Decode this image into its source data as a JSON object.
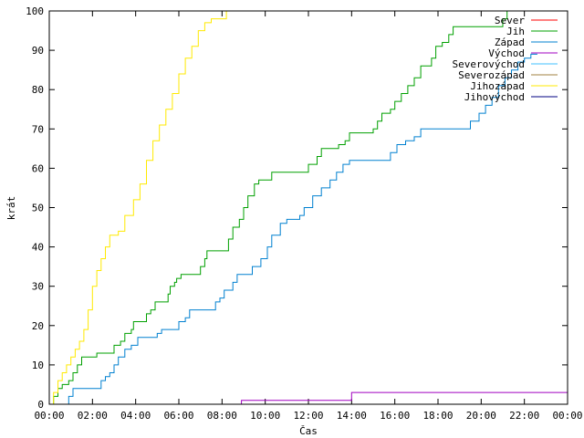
{
  "chart_data": {
    "type": "line",
    "xlabel": "Čas",
    "ylabel": "krát",
    "x_ticks": [
      "00:00",
      "02:00",
      "04:00",
      "06:00",
      "08:00",
      "10:00",
      "12:00",
      "14:00",
      "16:00",
      "18:00",
      "20:00",
      "22:00",
      "00:00"
    ],
    "y_ticks": [
      "0",
      "10",
      "20",
      "30",
      "40",
      "50",
      "60",
      "70",
      "80",
      "90",
      "100"
    ],
    "xlim": [
      0,
      24
    ],
    "ylim": [
      0,
      100
    ],
    "grid": false,
    "legend_position": "top-right",
    "series": [
      {
        "name": "Sever",
        "color": "#ff0000",
        "points": []
      },
      {
        "name": "Jih",
        "color": "#00a000",
        "points": [
          [
            0,
            0
          ],
          [
            0.2,
            2
          ],
          [
            0.4,
            4
          ],
          [
            0.6,
            5
          ],
          [
            0.9,
            6
          ],
          [
            1.1,
            8
          ],
          [
            1.3,
            10
          ],
          [
            1.5,
            12
          ],
          [
            2.1,
            12
          ],
          [
            2.2,
            13
          ],
          [
            2.9,
            13
          ],
          [
            3.0,
            15
          ],
          [
            3.3,
            16
          ],
          [
            3.5,
            18
          ],
          [
            3.8,
            19
          ],
          [
            3.9,
            21
          ],
          [
            4.4,
            21
          ],
          [
            4.5,
            23
          ],
          [
            4.7,
            24
          ],
          [
            4.9,
            26
          ],
          [
            5.4,
            26
          ],
          [
            5.5,
            28
          ],
          [
            5.6,
            30
          ],
          [
            5.8,
            31
          ],
          [
            5.9,
            32
          ],
          [
            6.1,
            33
          ],
          [
            6.9,
            33
          ],
          [
            7.0,
            35
          ],
          [
            7.2,
            37
          ],
          [
            7.3,
            39
          ],
          [
            8.1,
            39
          ],
          [
            8.3,
            42
          ],
          [
            8.5,
            45
          ],
          [
            8.8,
            47
          ],
          [
            9.0,
            50
          ],
          [
            9.2,
            53
          ],
          [
            9.5,
            56
          ],
          [
            9.7,
            57
          ],
          [
            10.2,
            57
          ],
          [
            10.3,
            59
          ],
          [
            11.9,
            59
          ],
          [
            12.0,
            61
          ],
          [
            12.4,
            63
          ],
          [
            12.6,
            65
          ],
          [
            13.2,
            65
          ],
          [
            13.4,
            66
          ],
          [
            13.7,
            67
          ],
          [
            13.9,
            69
          ],
          [
            14.7,
            69
          ],
          [
            15.0,
            70
          ],
          [
            15.2,
            72
          ],
          [
            15.4,
            74
          ],
          [
            15.8,
            75
          ],
          [
            16.0,
            77
          ],
          [
            16.3,
            79
          ],
          [
            16.6,
            81
          ],
          [
            16.9,
            83
          ],
          [
            17.2,
            86
          ],
          [
            17.4,
            86
          ],
          [
            17.7,
            88
          ],
          [
            17.9,
            91
          ],
          [
            18.2,
            92
          ],
          [
            18.5,
            94
          ],
          [
            18.7,
            96
          ],
          [
            20.7,
            96
          ],
          [
            21.0,
            98
          ],
          [
            21.2,
            100
          ]
        ]
      },
      {
        "name": "Západ",
        "color": "#0080d0",
        "points": [
          [
            0.8,
            0
          ],
          [
            0.9,
            2
          ],
          [
            1.1,
            4
          ],
          [
            2.3,
            4
          ],
          [
            2.4,
            6
          ],
          [
            2.6,
            7
          ],
          [
            2.8,
            8
          ],
          [
            3.0,
            10
          ],
          [
            3.2,
            12
          ],
          [
            3.5,
            14
          ],
          [
            3.8,
            15
          ],
          [
            4.1,
            17
          ],
          [
            4.9,
            17
          ],
          [
            5.0,
            18
          ],
          [
            5.2,
            19
          ],
          [
            5.9,
            19
          ],
          [
            6.0,
            21
          ],
          [
            6.3,
            22
          ],
          [
            6.5,
            24
          ],
          [
            7.5,
            24
          ],
          [
            7.7,
            26
          ],
          [
            7.9,
            27
          ],
          [
            8.1,
            29
          ],
          [
            8.5,
            31
          ],
          [
            8.7,
            33
          ],
          [
            9.2,
            33
          ],
          [
            9.4,
            35
          ],
          [
            9.8,
            37
          ],
          [
            10.1,
            40
          ],
          [
            10.3,
            43
          ],
          [
            10.7,
            46
          ],
          [
            11.0,
            47
          ],
          [
            11.6,
            48
          ],
          [
            11.8,
            50
          ],
          [
            12.2,
            53
          ],
          [
            12.6,
            55
          ],
          [
            13.0,
            57
          ],
          [
            13.3,
            59
          ],
          [
            13.6,
            61
          ],
          [
            13.9,
            62
          ],
          [
            15.6,
            62
          ],
          [
            15.8,
            64
          ],
          [
            16.1,
            66
          ],
          [
            16.5,
            67
          ],
          [
            16.9,
            68
          ],
          [
            17.2,
            70
          ],
          [
            19.3,
            70
          ],
          [
            19.5,
            72
          ],
          [
            19.9,
            74
          ],
          [
            20.2,
            76
          ],
          [
            20.5,
            78
          ],
          [
            20.8,
            81
          ],
          [
            21.1,
            83
          ],
          [
            21.4,
            85
          ],
          [
            21.7,
            87
          ],
          [
            22.0,
            88
          ],
          [
            22.3,
            89
          ],
          [
            22.6,
            89
          ]
        ]
      },
      {
        "name": "Východ",
        "color": "#a000c0",
        "points": [
          [
            8.8,
            0
          ],
          [
            8.9,
            1
          ],
          [
            13.9,
            1
          ],
          [
            14.0,
            3
          ],
          [
            24.0,
            3
          ]
        ]
      },
      {
        "name": "Severovýchod",
        "color": "#40c0ff",
        "points": []
      },
      {
        "name": "Severozápad",
        "color": "#a08040",
        "points": []
      },
      {
        "name": "Jihozápad",
        "color": "#ffea00",
        "points": [
          [
            0,
            0
          ],
          [
            0.2,
            3
          ],
          [
            0.4,
            6
          ],
          [
            0.6,
            8
          ],
          [
            0.8,
            10
          ],
          [
            1.0,
            12
          ],
          [
            1.2,
            14
          ],
          [
            1.4,
            16
          ],
          [
            1.6,
            19
          ],
          [
            1.8,
            24
          ],
          [
            2.0,
            30
          ],
          [
            2.2,
            34
          ],
          [
            2.4,
            37
          ],
          [
            2.6,
            40
          ],
          [
            2.8,
            43
          ],
          [
            3.2,
            44
          ],
          [
            3.5,
            48
          ],
          [
            3.9,
            52
          ],
          [
            4.2,
            56
          ],
          [
            4.5,
            62
          ],
          [
            4.8,
            67
          ],
          [
            5.1,
            71
          ],
          [
            5.4,
            75
          ],
          [
            5.7,
            79
          ],
          [
            6.0,
            84
          ],
          [
            6.3,
            88
          ],
          [
            6.6,
            91
          ],
          [
            6.9,
            95
          ],
          [
            7.2,
            97
          ],
          [
            7.5,
            98
          ],
          [
            8.2,
            100
          ]
        ]
      },
      {
        "name": "Jihovýchod",
        "color": "#000080",
        "points": []
      }
    ]
  }
}
